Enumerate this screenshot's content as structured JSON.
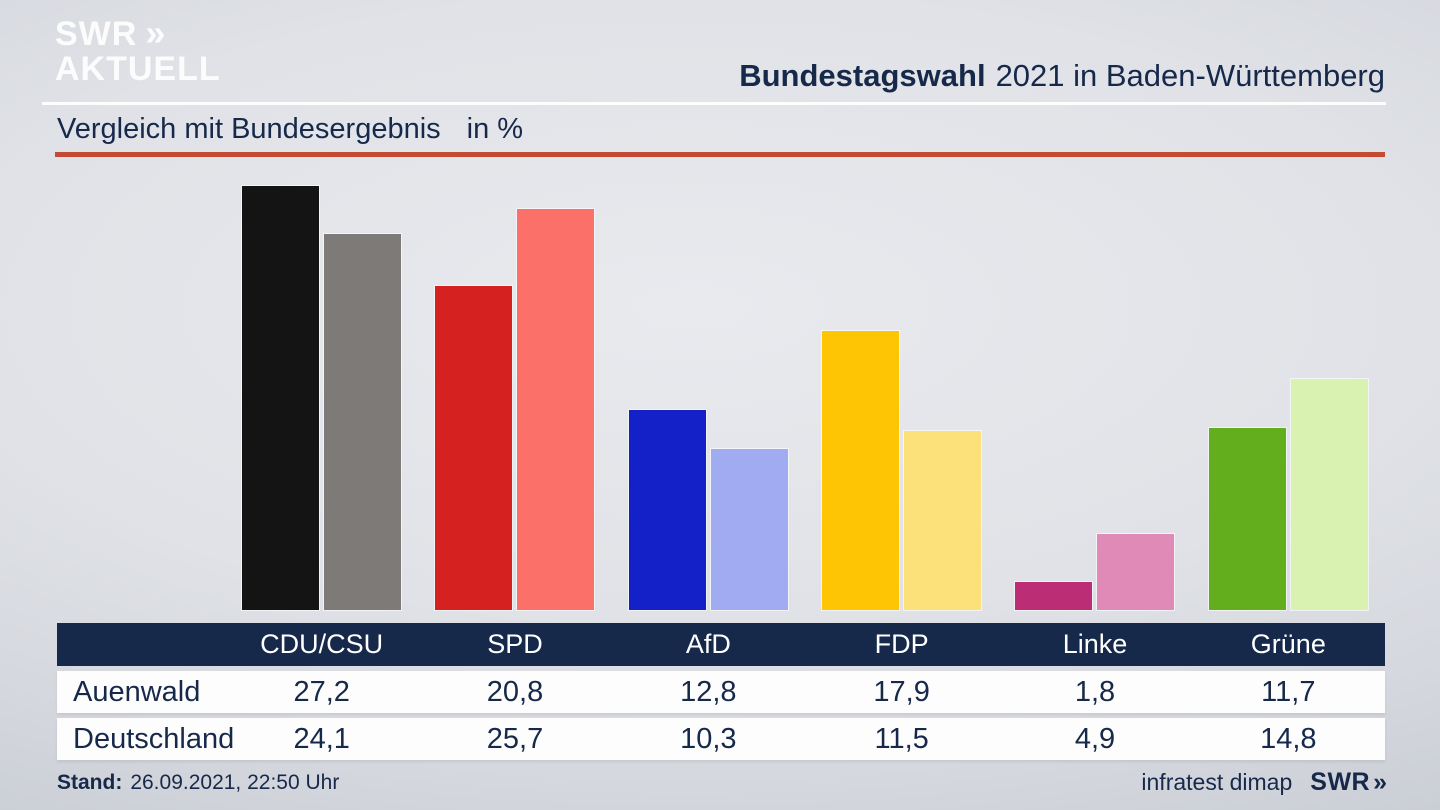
{
  "brand": {
    "line1": "SWR",
    "line2": "AKTUELL",
    "chevron": "»"
  },
  "header": {
    "title_bold": "Bundestagswahl",
    "title_regular": "2021 in Baden-Württemberg"
  },
  "subtitle": {
    "label": "Vergleich mit Bundesergebnis",
    "unit": "in %"
  },
  "accent_colors": {
    "red_rule": "#c34b33",
    "navy": "#17294a",
    "row_bg": "#fdfdfd"
  },
  "chart_data": {
    "type": "bar",
    "title": "Vergleich mit Bundesergebnis in %",
    "unit": "%",
    "categories": [
      "CDU/CSU",
      "SPD",
      "AfD",
      "FDP",
      "Linke",
      "Grüne"
    ],
    "series": [
      {
        "name": "Auenwald",
        "values": [
          27.2,
          20.8,
          12.8,
          17.9,
          1.8,
          11.7
        ]
      },
      {
        "name": "Deutschland",
        "values": [
          24.1,
          25.7,
          10.3,
          11.5,
          4.9,
          14.8
        ]
      }
    ],
    "series_colors": {
      "Auenwald": [
        "#141414",
        "#d52221",
        "#1421c8",
        "#fdc503",
        "#bb2e75",
        "#63ae1c"
      ],
      "Deutschland": [
        "#7d7a78",
        "#fb7169",
        "#a0abf2",
        "#fce17a",
        "#e08ab8",
        "#d9f2b2"
      ]
    },
    "ylim": [
      0,
      27.2
    ],
    "grid": false,
    "legend_position": "table-below",
    "value_format": "decimal-comma"
  },
  "footer": {
    "stand_label": "Stand:",
    "stand_value": "26.09.2021, 22:50 Uhr",
    "source": "infratest dimap",
    "brand": "SWR",
    "chevron": "»"
  }
}
